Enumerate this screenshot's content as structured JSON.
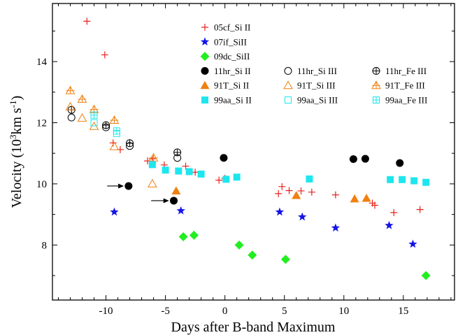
{
  "chart_data": {
    "type": "scatter",
    "xlabel": "Days after B-band Maximum",
    "ylabel": "Velocity (10³km s⁻¹)",
    "ylabel_parts": {
      "main": "Velocity (10",
      "sup1": "3",
      "mid": "km s",
      "sup2": "-1",
      "end": ")"
    },
    "xlim": [
      -14.5,
      19.3
    ],
    "ylim": [
      6.2,
      15.9
    ],
    "xticks": [
      -10,
      -5,
      0,
      5,
      10,
      15
    ],
    "yticks": [
      8,
      10,
      12,
      14
    ],
    "grid": false,
    "legend_position": "top-right",
    "series": [
      {
        "name": "05cf_Si II",
        "marker": "plus",
        "color": "#e8201c",
        "points": [
          [
            -11.6,
            15.32
          ],
          [
            -10.1,
            14.22
          ],
          [
            -9.4,
            11.34
          ],
          [
            -8.8,
            11.12
          ],
          [
            -6.5,
            10.75
          ],
          [
            -6.1,
            10.82
          ],
          [
            -5.1,
            10.62
          ],
          [
            -3.3,
            10.58
          ],
          [
            -2.5,
            10.38
          ],
          [
            -0.5,
            10.12
          ],
          [
            0.0,
            10.18
          ],
          [
            4.5,
            9.68
          ],
          [
            4.8,
            9.91
          ],
          [
            5.4,
            9.78
          ],
          [
            6.4,
            9.77
          ],
          [
            7.3,
            9.73
          ],
          [
            9.3,
            9.64
          ],
          [
            12.4,
            9.37
          ],
          [
            12.6,
            9.3
          ],
          [
            14.2,
            9.06
          ],
          [
            16.4,
            9.16
          ]
        ]
      },
      {
        "name": "07if_SiII",
        "marker": "star",
        "color": "#1414e6",
        "points": [
          [
            -9.3,
            9.08
          ],
          [
            -3.7,
            9.12
          ],
          [
            4.6,
            9.08
          ],
          [
            6.5,
            8.92
          ],
          [
            9.3,
            8.56
          ],
          [
            13.8,
            8.64
          ],
          [
            15.8,
            8.03
          ]
        ]
      },
      {
        "name": "09dc_SiII",
        "marker": "diamond",
        "color": "#22ee22",
        "points": [
          [
            -3.5,
            8.27
          ],
          [
            -2.6,
            8.32
          ],
          [
            1.2,
            8.0
          ],
          [
            2.3,
            7.67
          ],
          [
            5.1,
            7.53
          ],
          [
            16.9,
            7.0
          ]
        ]
      },
      {
        "name": "11hr_Si II",
        "marker": "circle-filled",
        "color": "#000000",
        "points": [
          [
            -8.1,
            9.93
          ],
          [
            -4.3,
            9.45
          ],
          [
            -0.1,
            10.85
          ],
          [
            10.8,
            10.81
          ],
          [
            11.8,
            10.82
          ],
          [
            14.7,
            10.68
          ]
        ]
      },
      {
        "name": "11hr_Si III",
        "marker": "circle-open",
        "color": "#000000",
        "points": [
          [
            -12.9,
            12.17
          ],
          [
            -10.0,
            11.85
          ],
          [
            -8.0,
            11.24
          ],
          [
            -4.0,
            10.85
          ]
        ]
      },
      {
        "name": "11hr_Fe III",
        "marker": "circle-cross",
        "color": "#000000",
        "points": [
          [
            -12.9,
            12.42
          ],
          [
            -10.0,
            11.92
          ],
          [
            -8.0,
            11.33
          ],
          [
            -4.0,
            11.03
          ]
        ]
      },
      {
        "name": "91T_Si II",
        "marker": "triangle-filled",
        "color": "#f08010",
        "points": [
          [
            -4.1,
            9.77
          ],
          [
            6.0,
            9.62
          ],
          [
            10.9,
            9.51
          ],
          [
            11.9,
            9.53
          ]
        ]
      },
      {
        "name": "91T_Si III",
        "marker": "triangle-open",
        "color": "#f08010",
        "points": [
          [
            -13.0,
            12.52
          ],
          [
            -12.0,
            12.15
          ],
          [
            -11.0,
            11.88
          ],
          [
            -9.3,
            11.22
          ],
          [
            -6.1,
            10.0
          ]
        ]
      },
      {
        "name": "91T_Fe III",
        "marker": "triangle-cross",
        "color": "#f08010",
        "points": [
          [
            -13.0,
            13.05
          ],
          [
            -12.0,
            12.77
          ],
          [
            -11.0,
            12.43
          ],
          [
            -9.3,
            12.08
          ],
          [
            -6.0,
            10.85
          ]
        ]
      },
      {
        "name": "99aa_Si II",
        "marker": "square-filled",
        "color": "#1ee6ee",
        "points": [
          [
            -6.1,
            10.63
          ],
          [
            -5.0,
            10.45
          ],
          [
            -3.9,
            10.42
          ],
          [
            -3.0,
            10.4
          ],
          [
            -2.0,
            10.32
          ],
          [
            0.1,
            10.15
          ],
          [
            1.0,
            10.22
          ],
          [
            7.1,
            10.16
          ],
          [
            13.9,
            10.14
          ],
          [
            14.9,
            10.14
          ],
          [
            15.9,
            10.1
          ],
          [
            16.9,
            10.05
          ]
        ]
      },
      {
        "name": "99aa_Si III",
        "marker": "square-open",
        "color": "#1ee6ee",
        "points": [
          [
            -11.0,
            12.0
          ],
          [
            -9.1,
            11.65
          ]
        ]
      },
      {
        "name": "99aa_Fe III",
        "marker": "square-cross",
        "color": "#1ee6ee",
        "points": [
          [
            -11.0,
            12.25
          ],
          [
            -9.1,
            11.73
          ]
        ]
      }
    ],
    "arrows": [
      {
        "from": [
          -9.9,
          9.93
        ],
        "to": [
          -8.5,
          9.93
        ]
      },
      {
        "from": [
          -6.2,
          9.45
        ],
        "to": [
          -4.7,
          9.45
        ]
      }
    ],
    "legend_rows": [
      [
        0
      ],
      [
        1
      ],
      [
        2
      ],
      [
        3,
        4,
        5
      ],
      [
        6,
        7,
        8
      ],
      [
        9,
        10,
        11
      ]
    ]
  }
}
